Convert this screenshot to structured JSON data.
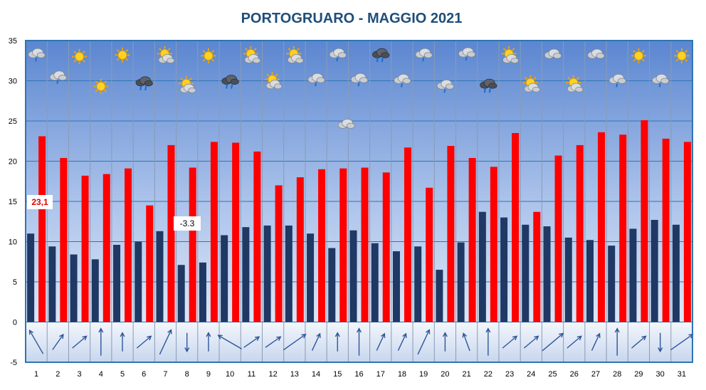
{
  "chart_data": {
    "type": "bar",
    "title": "PORTOGRUARO - MAGGIO 2021",
    "ylim": [
      -5,
      35
    ],
    "yticks": [
      -5,
      0,
      5,
      10,
      15,
      20,
      25,
      30,
      35
    ],
    "categories": [
      "1",
      "2",
      "3",
      "4",
      "5",
      "6",
      "7",
      "8",
      "9",
      "10",
      "11",
      "12",
      "13",
      "14",
      "15",
      "16",
      "17",
      "18",
      "19",
      "20",
      "21",
      "22",
      "23",
      "24",
      "25",
      "26",
      "27",
      "28",
      "29",
      "30",
      "31"
    ],
    "series": [
      {
        "color": "#1f3864",
        "values": [
          11.0,
          9.4,
          8.4,
          7.8,
          9.6,
          10.0,
          11.3,
          7.1,
          7.4,
          10.8,
          11.8,
          12.0,
          12.0,
          11.0,
          9.2,
          11.4,
          9.8,
          8.8,
          9.4,
          6.5,
          9.9,
          13.7,
          13.0,
          12.1,
          11.9,
          10.5,
          10.2,
          9.5,
          11.6,
          12.7,
          12.1
        ]
      },
      {
        "color": "#ff0000",
        "values": [
          23.1,
          20.4,
          18.2,
          18.4,
          19.1,
          14.5,
          22.0,
          19.2,
          22.4,
          22.3,
          21.2,
          17.0,
          18.0,
          19.0,
          19.1,
          19.2,
          18.6,
          21.7,
          16.7,
          21.9,
          20.4,
          19.3,
          23.5,
          13.7,
          20.7,
          22.0,
          23.6,
          23.3,
          25.1,
          22.8,
          22.4
        ]
      }
    ],
    "labels": {
      "max_label": "23,1",
      "min_label": "-3.3"
    },
    "weather_icons": [
      {
        "icon": "cloud-rain-light-icon",
        "value": 33.3
      },
      {
        "icon": "cloud-rain-light-icon",
        "value": 30.5
      },
      {
        "icon": "sun-icon",
        "value": 33.0
      },
      {
        "icon": "sun-icon",
        "value": 29.3
      },
      {
        "icon": "sun-icon",
        "value": 33.2
      },
      {
        "icon": "cloud-heavy-rain-icon",
        "value": 29.8
      },
      {
        "icon": "sun-cloud-icon",
        "value": 33.1
      },
      {
        "icon": "sun-cloud-icon",
        "value": 29.4
      },
      {
        "icon": "sun-icon",
        "value": 33.1
      },
      {
        "icon": "cloud-heavy-rain-icon",
        "value": 30.0
      },
      {
        "icon": "sun-cloud-icon",
        "value": 33.1
      },
      {
        "icon": "sun-cloud-icon",
        "value": 29.9
      },
      {
        "icon": "sun-cloud-icon",
        "value": 33.1
      },
      {
        "icon": "cloud-rain-light-icon",
        "value": 30.2
      },
      {
        "icon": "cloud-rain-light-icon",
        "value": 33.3
      },
      {
        "icon": "cloud-icon",
        "value": 24.7
      },
      {
        "icon": "cloud-rain-light-icon",
        "value": 30.2
      },
      {
        "icon": "cloud-heavy-rain-icon",
        "value": 33.3
      },
      {
        "icon": "cloud-rain-light-icon",
        "value": 30.1
      },
      {
        "icon": "cloud-rain-light-icon",
        "value": 33.3
      },
      {
        "icon": "cloud-rain-light-icon",
        "value": 29.4
      },
      {
        "icon": "cloud-rain-light-icon",
        "value": 33.4
      },
      {
        "icon": "cloud-heavy-rain-icon",
        "value": 29.5
      },
      {
        "icon": "sun-cloud-icon",
        "value": 33.1
      },
      {
        "icon": "sun-cloud-icon",
        "value": 29.5
      },
      {
        "icon": "cloud-icon",
        "value": 33.4
      },
      {
        "icon": "sun-cloud-icon",
        "value": 29.5
      },
      {
        "icon": "cloud-icon",
        "value": 33.4
      },
      {
        "icon": "cloud-rain-light-icon",
        "value": 30.1
      },
      {
        "icon": "sun-icon",
        "value": 33.1
      },
      {
        "icon": "cloud-rain-light-icon",
        "value": 30.1
      },
      {
        "icon": "sun-icon",
        "value": 33.1
      }
    ],
    "wind_directions_deg": [
      330,
      35,
      50,
      0,
      0,
      50,
      25,
      180,
      0,
      300,
      55,
      55,
      55,
      25,
      0,
      0,
      25,
      25,
      25,
      0,
      340,
      0,
      50,
      50,
      50,
      50,
      25,
      0,
      50,
      180,
      55
    ]
  }
}
